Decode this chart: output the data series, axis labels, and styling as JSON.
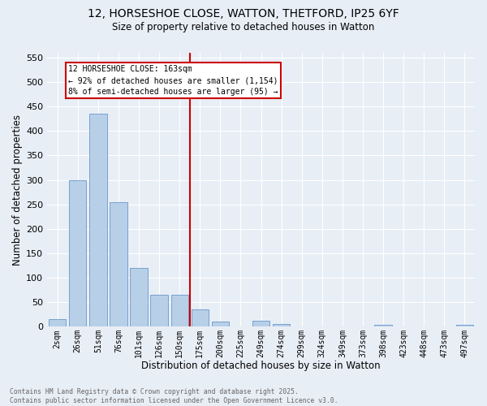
{
  "title_line1": "12, HORSESHOE CLOSE, WATTON, THETFORD, IP25 6YF",
  "title_line2": "Size of property relative to detached houses in Watton",
  "xlabel": "Distribution of detached houses by size in Watton",
  "ylabel": "Number of detached properties",
  "bar_labels": [
    "2sqm",
    "26sqm",
    "51sqm",
    "76sqm",
    "101sqm",
    "126sqm",
    "150sqm",
    "175sqm",
    "200sqm",
    "225sqm",
    "249sqm",
    "274sqm",
    "299sqm",
    "324sqm",
    "349sqm",
    "373sqm",
    "398sqm",
    "423sqm",
    "448sqm",
    "473sqm",
    "497sqm"
  ],
  "bar_values": [
    15,
    300,
    435,
    255,
    120,
    65,
    65,
    35,
    10,
    0,
    12,
    5,
    0,
    0,
    0,
    0,
    3,
    0,
    0,
    0,
    4
  ],
  "bar_color": "#b8cfe8",
  "bar_edge_color": "#6898c8",
  "background_color": "#e8eef6",
  "grid_color": "#ffffff",
  "ylim": [
    0,
    560
  ],
  "yticks": [
    0,
    50,
    100,
    150,
    200,
    250,
    300,
    350,
    400,
    450,
    500,
    550
  ],
  "marker_label_line1": "12 HORSESHOE CLOSE: 163sqm",
  "marker_label_line2": "← 92% of detached houses are smaller (1,154)",
  "marker_label_line3": "8% of semi-detached houses are larger (95) →",
  "annotation_box_color": "#ffffff",
  "annotation_box_edge": "#cc0000",
  "vline_color": "#cc0000",
  "vline_x": 6.5,
  "footer_line1": "Contains HM Land Registry data © Crown copyright and database right 2025.",
  "footer_line2": "Contains public sector information licensed under the Open Government Licence v3.0."
}
